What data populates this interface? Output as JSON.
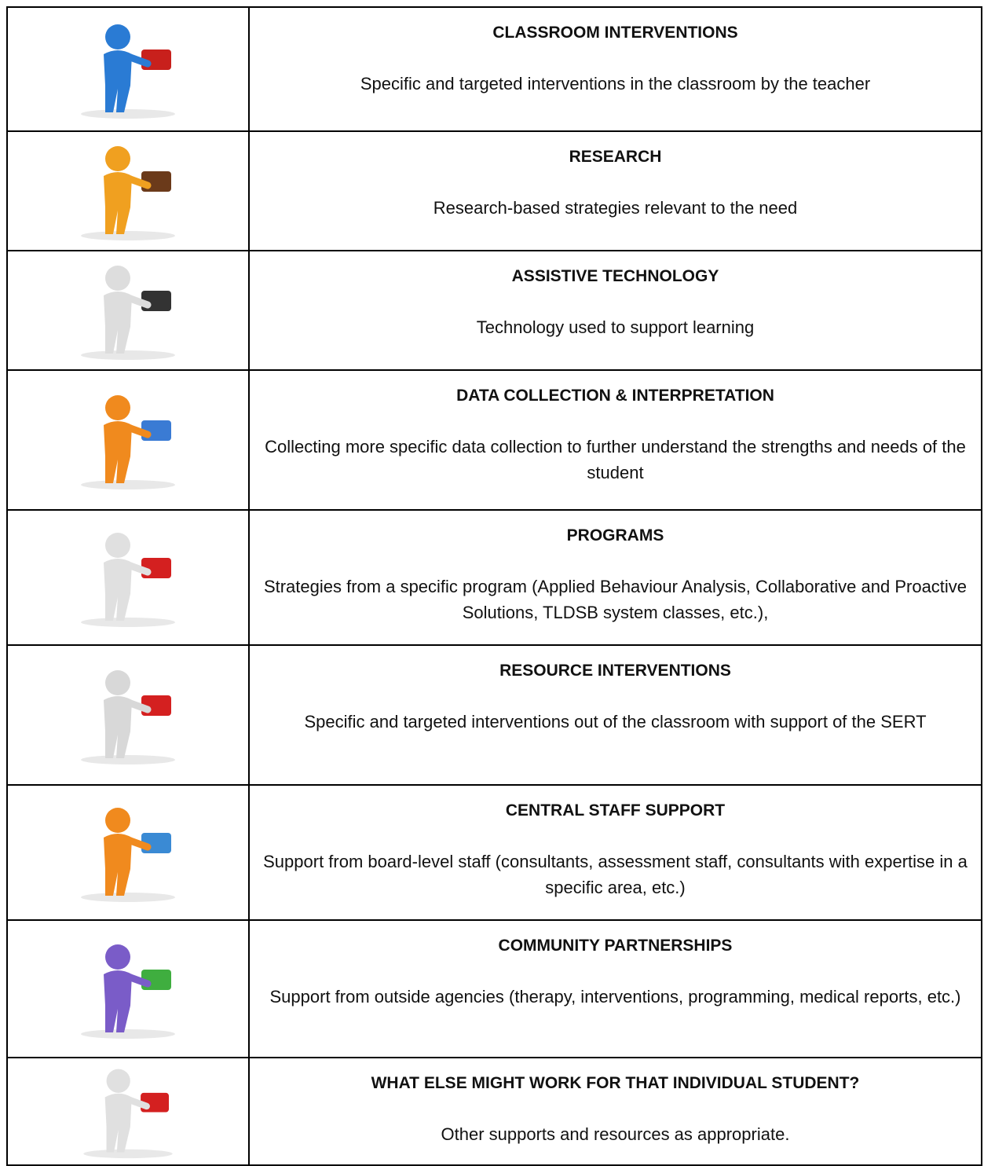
{
  "rows": [
    {
      "title": "CLASSROOM INTERVENTIONS",
      "description": "Specific and targeted interventions in the classroom by the teacher"
    },
    {
      "title": "RESEARCH",
      "description": "Research-based strategies relevant to the need"
    },
    {
      "title": "ASSISTIVE TECHNOLOGY",
      "description": "Technology used to support learning"
    },
    {
      "title": "DATA COLLECTION & INTERPRETATION",
      "description": "Collecting more specific data collection to further understand the strengths and needs of the student"
    },
    {
      "title": "PROGRAMS",
      "description": "Strategies from a specific program (Applied Behaviour Analysis, Collaborative and Proactive Solutions, TLDSB system classes, etc.),"
    },
    {
      "title": "RESOURCE INTERVENTIONS",
      "description": "Specific and targeted interventions out of the classroom with support of the SERT"
    },
    {
      "title": "CENTRAL STAFF SUPPORT",
      "description": "Support from board-level staff (consultants, assessment staff, consultants with expertise in a specific area, etc.)"
    },
    {
      "title": "COMMUNITY PARTNERSHIPS",
      "description": "Support from outside agencies (therapy, interventions, programming, medical reports, etc.)"
    },
    {
      "title": "WHAT ELSE MIGHT WORK FOR THAT INDIVIDUAL STUDENT?",
      "description": "Other supports and resources as appropriate."
    }
  ]
}
